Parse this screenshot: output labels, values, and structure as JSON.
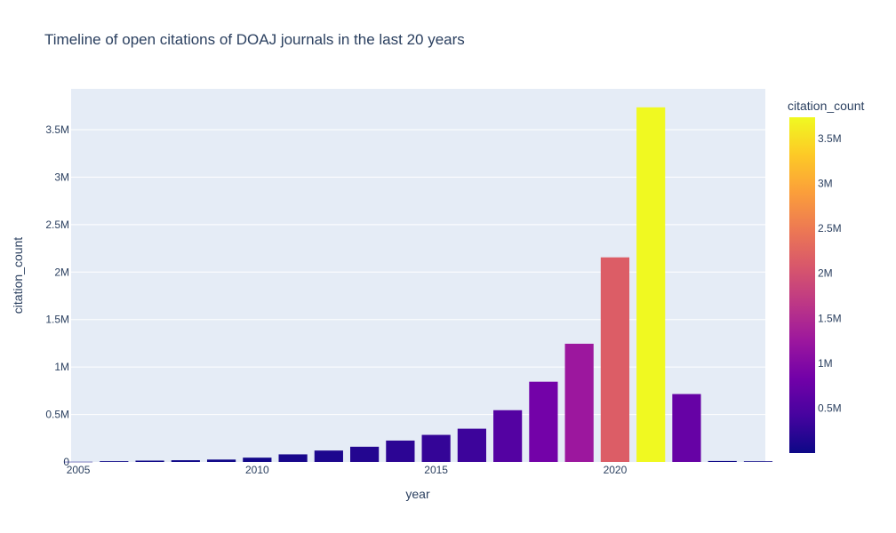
{
  "chart_data": {
    "type": "bar",
    "title": "Timeline of open citations of DOAJ journals in the last 20 years",
    "xlabel": "year",
    "ylabel": "citation_count",
    "x": [
      2005,
      2006,
      2007,
      2008,
      2009,
      2010,
      2011,
      2012,
      2013,
      2014,
      2015,
      2016,
      2017,
      2018,
      2019,
      2020,
      2021,
      2022,
      2023,
      2024
    ],
    "values": [
      2000,
      8000,
      14000,
      18000,
      25000,
      45000,
      80000,
      120000,
      160000,
      225000,
      285000,
      350000,
      545000,
      845000,
      1245000,
      2155000,
      3735000,
      715000,
      10000,
      7000
    ],
    "xlim": [
      2004.8,
      2024.2
    ],
    "ylim": [
      0,
      3930000
    ],
    "x_ticks": [
      2005,
      2010,
      2015,
      2020
    ],
    "x_tick_labels": [
      "2005",
      "2010",
      "2015",
      "2020"
    ],
    "y_ticks": [
      0,
      500000,
      1000000,
      1500000,
      2000000,
      2500000,
      3000000,
      3500000
    ],
    "y_tick_labels": [
      "0",
      "0.5M",
      "1M",
      "1.5M",
      "2M",
      "2.5M",
      "3M",
      "3.5M"
    ],
    "grid": true,
    "colorscale": "plasma",
    "colorbar": {
      "title": "citation_count",
      "range": [
        2000,
        3735000
      ],
      "ticks": [
        500000,
        1000000,
        1500000,
        2000000,
        2500000,
        3000000,
        3500000
      ],
      "tick_labels": [
        "0.5M",
        "1M",
        "1.5M",
        "2M",
        "2.5M",
        "3M",
        "3.5M"
      ]
    },
    "plot_background": "#e5ecf6"
  }
}
